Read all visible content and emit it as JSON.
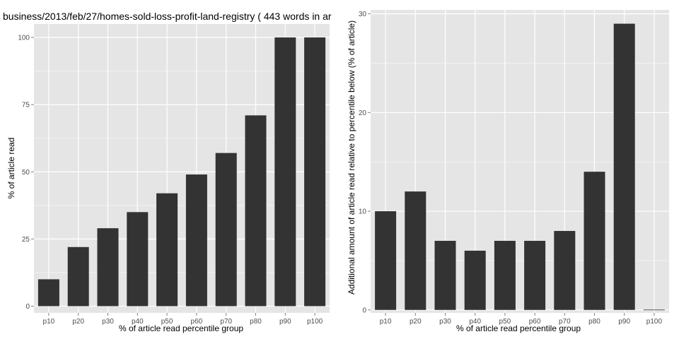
{
  "colors": {
    "panel_bg": "#e5e5e5",
    "grid_major": "#ffffff",
    "grid_minor": "#f2f2f2",
    "bar_fill": "#333333",
    "tick_text": "#4d4d4d"
  },
  "chart_data": [
    {
      "type": "bar",
      "title": "business/2013/feb/27/homes-sold-loss-profit-land-registry ( 443 words in ar",
      "xlabel": "% of article read percentile group",
      "ylabel": "% of article read",
      "categories": [
        "p10",
        "p20",
        "p30",
        "p40",
        "p50",
        "p60",
        "p70",
        "p80",
        "p90",
        "p100"
      ],
      "values": [
        10,
        22,
        29,
        35,
        42,
        49,
        57,
        71,
        100,
        100
      ],
      "ylim": [
        -2.5,
        105
      ],
      "yticks": [
        0,
        25,
        50,
        75,
        100
      ],
      "grid": true
    },
    {
      "type": "bar",
      "title": "",
      "xlabel": "% of article read percentile group",
      "ylabel": "Additional amount of article read relative to percentile below (% of article)",
      "categories": [
        "p10",
        "p20",
        "p30",
        "p40",
        "p50",
        "p60",
        "p70",
        "p80",
        "p90",
        "p100"
      ],
      "values": [
        10,
        12,
        7,
        6,
        7,
        7,
        8,
        14,
        29,
        0
      ],
      "ylim": [
        -0.3,
        30.4
      ],
      "yticks": [
        0,
        10,
        20,
        30
      ],
      "grid": true
    }
  ]
}
